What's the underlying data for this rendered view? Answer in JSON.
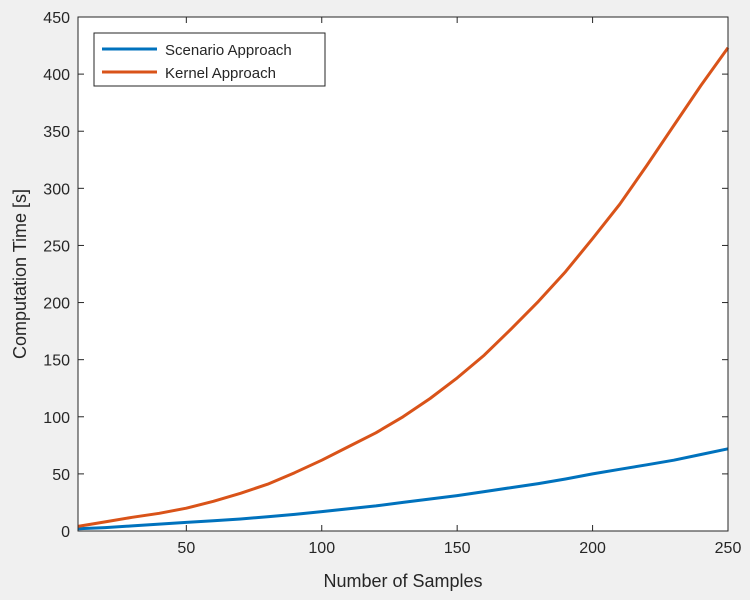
{
  "chart_data": {
    "type": "line",
    "title": "",
    "xlabel": "Number of Samples",
    "ylabel": "Computation Time [s]",
    "xlim": [
      10,
      250
    ],
    "ylim": [
      0,
      450
    ],
    "xticks": [
      50,
      100,
      150,
      200,
      250
    ],
    "yticks": [
      0,
      50,
      100,
      150,
      200,
      250,
      300,
      350,
      400,
      450
    ],
    "grid": false,
    "legend_position": "top-left",
    "x": [
      10,
      20,
      30,
      40,
      50,
      60,
      70,
      80,
      90,
      100,
      110,
      120,
      130,
      140,
      150,
      160,
      170,
      180,
      190,
      200,
      210,
      220,
      230,
      240,
      250
    ],
    "series": [
      {
        "name": "Scenario Approach",
        "color": "#0072BD",
        "values": [
          2,
          3,
          4.5,
          6,
          7.5,
          9,
          10.5,
          12.5,
          14.5,
          17,
          19.5,
          22,
          25,
          28,
          31,
          34.5,
          38,
          41.5,
          45.5,
          50,
          54,
          58,
          62,
          67,
          72
        ]
      },
      {
        "name": "Kernel Approach",
        "color": "#D95319",
        "values": [
          4,
          8,
          12,
          15.5,
          20,
          26,
          33,
          41,
          51,
          62,
          74,
          86,
          100,
          116,
          134,
          154,
          177,
          201,
          227,
          256,
          286,
          320,
          355,
          390,
          423
        ]
      }
    ]
  }
}
